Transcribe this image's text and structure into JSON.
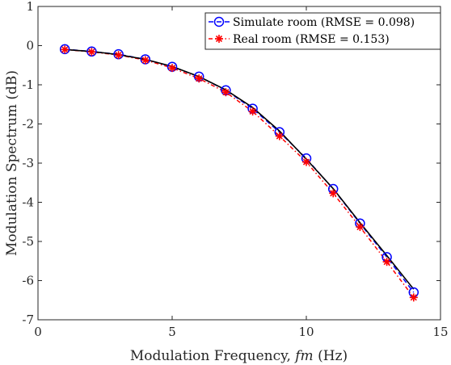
{
  "chart_data": {
    "type": "line",
    "xlabel": "Modulation Frequency, ",
    "xlabel_var": "fm",
    "xlabel_unit": " (Hz)",
    "ylabel": "Modulation Spectrum (dB)",
    "xlim": [
      0,
      15
    ],
    "ylim": [
      -7,
      1
    ],
    "xticks": [
      0,
      5,
      10,
      15
    ],
    "yticks": [
      1,
      0,
      -1,
      -2,
      -3,
      -4,
      -5,
      -6,
      -7
    ],
    "grid": false,
    "legend_position": "top-right",
    "x": [
      1,
      2,
      3,
      4,
      5,
      6,
      7,
      8,
      9,
      10,
      11,
      12,
      13,
      14
    ],
    "reference": {
      "color": "#000000",
      "values": [
        -0.1,
        -0.15,
        -0.23,
        -0.35,
        -0.53,
        -0.79,
        -1.13,
        -1.58,
        -2.18,
        -2.9,
        -3.65,
        -4.52,
        -5.36,
        -6.22
      ]
    },
    "series": [
      {
        "name": "Simulate room (RMSE = 0.098)",
        "color": "#0000ff",
        "marker": "circle",
        "dash": "6,4",
        "values": [
          -0.09,
          -0.15,
          -0.22,
          -0.35,
          -0.54,
          -0.79,
          -1.14,
          -1.61,
          -2.21,
          -2.88,
          -3.66,
          -4.54,
          -5.4,
          -6.3
        ]
      },
      {
        "name": "Real room (RMSE = 0.153)",
        "color": "#ff0000",
        "marker": "asterisk",
        "dash": "5,3,1.5,3",
        "values": [
          -0.1,
          -0.16,
          -0.24,
          -0.37,
          -0.57,
          -0.84,
          -1.19,
          -1.68,
          -2.31,
          -2.97,
          -3.77,
          -4.63,
          -5.52,
          -6.43
        ]
      }
    ]
  }
}
